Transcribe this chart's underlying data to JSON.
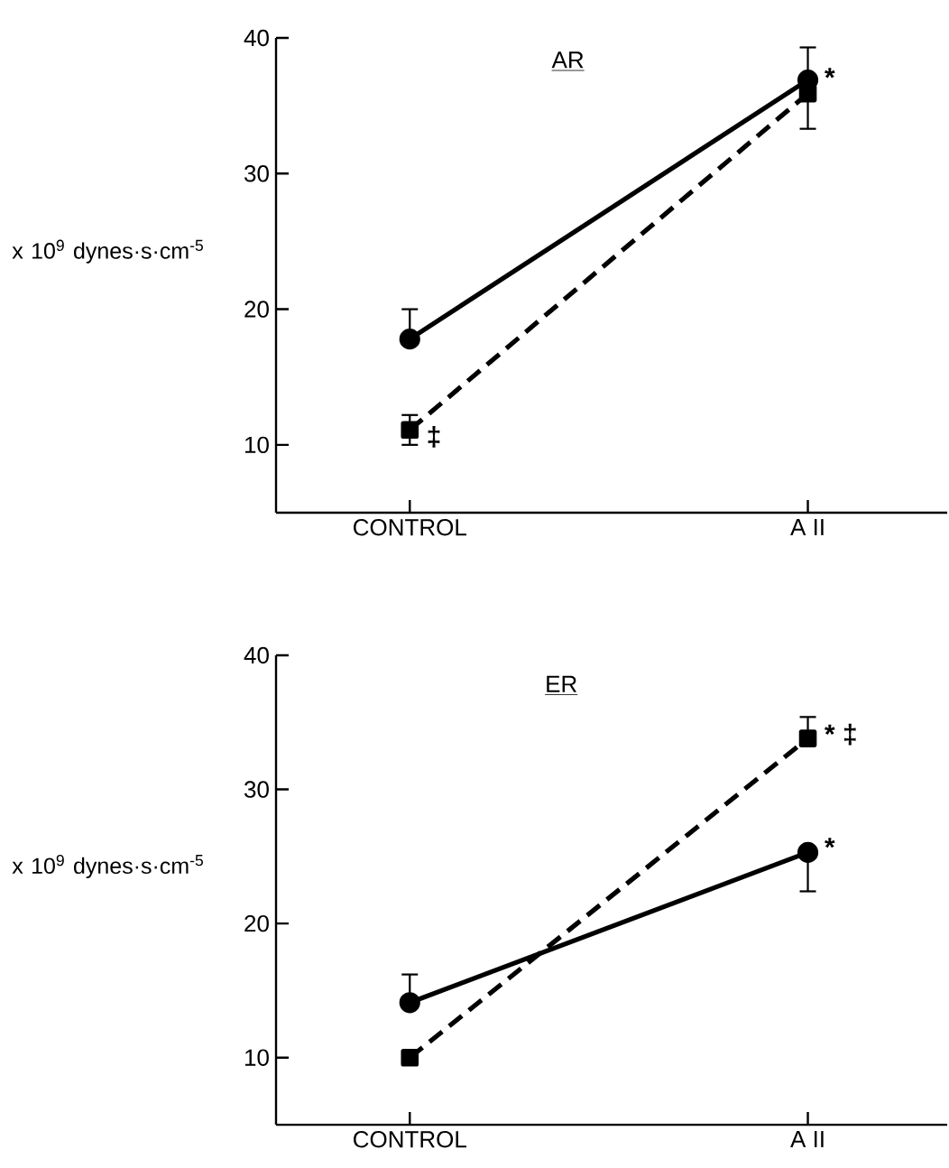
{
  "chart_data": [
    {
      "type": "line",
      "title": "AR",
      "ylabel": "x 10$^{9}$ dynes·s·cm$^{-5}$",
      "categories": [
        "CONTROL",
        "A II"
      ],
      "ylim": [
        5,
        40
      ],
      "yticks": [
        10,
        20,
        30,
        40
      ],
      "series": [
        {
          "color": "#000000",
          "marker": "circle",
          "line_style": "solid",
          "values": [
            17.8,
            36.9
          ],
          "errors": [
            [
              17.8,
              20
            ],
            null
          ]
        },
        {
          "color": "#000000",
          "marker": "square",
          "line_style": "dashed",
          "values": [
            11.1,
            35.9
          ],
          "errors": [
            [
              10,
              12.2
            ],
            [
              33.3,
              39.3
            ]
          ]
        }
      ],
      "annotations": [
        {
          "text": "*",
          "x": "A II",
          "y": 37.1
        },
        {
          "text": "‡",
          "x": "CONTROL",
          "y": 10.6
        }
      ]
    },
    {
      "type": "line",
      "title": "ER",
      "ylabel": "x 10$^{9}$ dynes·s·cm$^{-5}$",
      "categories": [
        "CONTROL",
        "A II"
      ],
      "ylim": [
        5,
        40
      ],
      "yticks": [
        10,
        20,
        30,
        40
      ],
      "series": [
        {
          "color": "#000000",
          "marker": "circle",
          "line_style": "solid",
          "values": [
            14.1,
            25.3
          ],
          "errors": [
            [
              14.1,
              16.2
            ],
            [
              22.4,
              25.3
            ]
          ]
        },
        {
          "color": "#000000",
          "marker": "square",
          "line_style": "dashed",
          "values": [
            10,
            33.8
          ],
          "errors": [
            null,
            [
              33.8,
              35.4
            ]
          ]
        }
      ],
      "annotations": [
        {
          "text": "* ‡",
          "x": "A II",
          "y": 34.1
        },
        {
          "text": "*",
          "x": "A II",
          "y": 25.7
        }
      ]
    }
  ]
}
